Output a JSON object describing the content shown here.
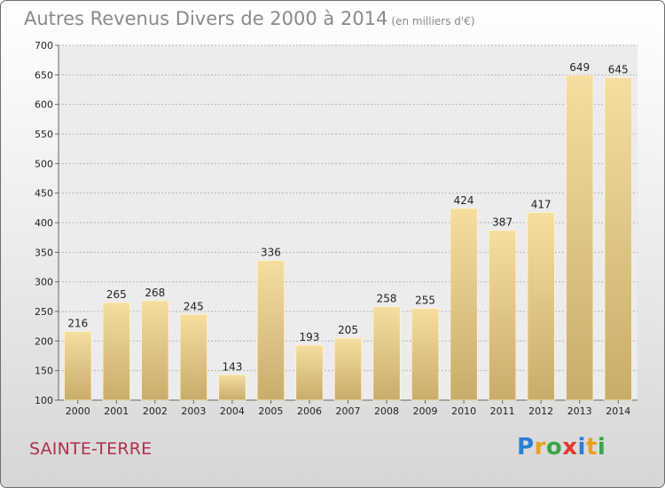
{
  "title": "Autres Revenus Divers de 2000 à 2014",
  "subtitle": "(en milliers d'€)",
  "commune": "SAINTE-TERRE",
  "logo": {
    "letters": [
      "P",
      "r",
      "o",
      "x",
      "i",
      "t",
      "i"
    ],
    "colors": [
      "#2a7fd4",
      "#e8a020",
      "#3aa54a",
      "#e33a2a",
      "#2a7fd4",
      "#e8a020",
      "#3aa54a"
    ]
  },
  "colors": {
    "bar_light": "#f6dea0",
    "bar_dark": "#c8ac6a",
    "grid": "#b4b4b4",
    "axis_text": "#222222"
  },
  "chart_data": {
    "type": "bar",
    "title": "Autres Revenus Divers de 2000 à 2014",
    "subtitle": "(en milliers d'€)",
    "categories": [
      "2000",
      "2001",
      "2002",
      "2003",
      "2004",
      "2005",
      "2006",
      "2007",
      "2008",
      "2009",
      "2010",
      "2011",
      "2012",
      "2013",
      "2014"
    ],
    "values": [
      216,
      265,
      268,
      245,
      143,
      336,
      193,
      205,
      258,
      255,
      424,
      387,
      417,
      649,
      645
    ],
    "ylim": [
      100,
      700
    ],
    "yticks": [
      100,
      150,
      200,
      250,
      300,
      350,
      400,
      450,
      500,
      550,
      600,
      650,
      700
    ],
    "grid": true,
    "data_labels": true
  }
}
